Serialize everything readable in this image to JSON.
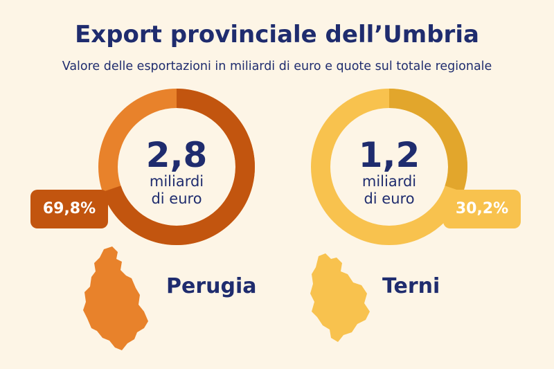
{
  "header": {
    "title": "Export provinciale dell’Umbria",
    "subtitle": "Valore delle esportazioni in miliardi di euro e quote sul totale regionale"
  },
  "colors": {
    "background": "#fdf5e6",
    "title": "#1f2c6e",
    "perugia_light": "#e8822b",
    "perugia_dark": "#c2550f",
    "terni_light": "#f8c24e",
    "terni_dark": "#e2a62c"
  },
  "chart_data": {
    "type": "pie",
    "title": "Export provinciale dell’Umbria",
    "subtitle": "Valore delle esportazioni in miliardi di euro e quote sul totale regionale",
    "unit": "miliardi di euro",
    "categories": [
      "Perugia",
      "Terni"
    ],
    "values": [
      2.8,
      1.2
    ],
    "shares_percent": [
      69.8,
      30.2
    ],
    "provinces": [
      {
        "name": "Perugia",
        "value": 2.8,
        "value_label": "2,8",
        "unit_line1": "miliardi",
        "unit_line2": "di euro",
        "share": 69.8,
        "share_label": "69,8%",
        "color": "#e8822b",
        "dark_color": "#c2550f",
        "badge_color": "#c2550f",
        "badge_text_color": "#ffffff",
        "icon": "perugia-province-icon"
      },
      {
        "name": "Terni",
        "value": 1.2,
        "value_label": "1,2",
        "unit_line1": "miliardi",
        "unit_line2": "di euro",
        "share": 30.2,
        "share_label": "30,2%",
        "color": "#f8c24e",
        "dark_color": "#e2a62c",
        "badge_color": "#f8c24e",
        "badge_text_color": "#ffffff",
        "icon": "terni-province-icon"
      }
    ]
  }
}
